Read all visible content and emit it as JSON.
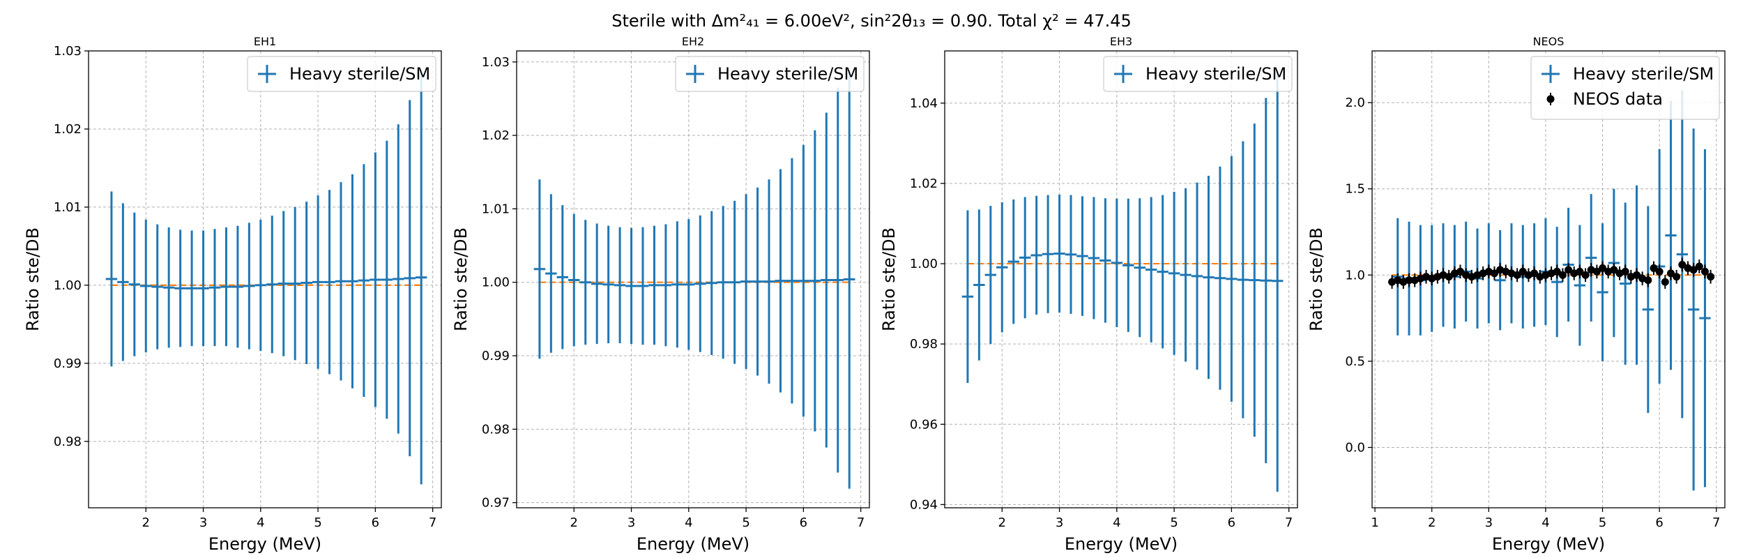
{
  "figure": {
    "suptitle": "Sterile with Δm²₄₁ = 6.00eV², sin²2θ₁₃ = 0.90. Total χ² = 47.45"
  },
  "colors": {
    "model": "#1f77b4",
    "reference": "#ff7f0e",
    "data": "#000000"
  },
  "chart_data": [
    {
      "type": "scatter",
      "title": "EH1",
      "xlabel": "Energy (MeV)",
      "ylabel": "Ratio ste/DB",
      "xlim": [
        1.0,
        7.15
      ],
      "ylim": [
        0.9715,
        1.03
      ],
      "xticks": [
        2,
        3,
        4,
        5,
        6,
        7
      ],
      "yticks": [
        0.98,
        0.99,
        1.0,
        1.01,
        1.02,
        1.03
      ],
      "ytick_labels": [
        "0.98",
        "0.99",
        "1.00",
        "1.01",
        "1.02",
        "1.03"
      ],
      "grid": true,
      "legend_position": "top-right",
      "reference_line": {
        "y": 1.0,
        "x": [
          1.4,
          6.8
        ]
      },
      "series": [
        {
          "name": "Heavy sterile/SM",
          "style": "errorbar",
          "x": [
            1.4,
            1.6,
            1.8,
            2.0,
            2.2,
            2.4,
            2.6,
            2.8,
            3.0,
            3.2,
            3.4,
            3.6,
            3.8,
            4.0,
            4.2,
            4.4,
            4.6,
            4.8,
            5.0,
            5.2,
            5.4,
            5.6,
            5.8,
            6.0,
            6.2,
            6.4,
            6.6,
            6.8
          ],
          "y": [
            1.0008,
            1.0004,
            1.0001,
            0.9999,
            0.9998,
            0.9997,
            0.9996,
            0.9996,
            0.9996,
            0.9997,
            0.9998,
            0.9998,
            0.9999,
            1.0,
            1.0001,
            1.0002,
            1.0002,
            1.0003,
            1.0004,
            1.0004,
            1.0005,
            1.0005,
            1.0006,
            1.0007,
            1.0007,
            1.0008,
            1.0009,
            1.001
          ],
          "xerr": 0.1,
          "yerr": [
            0.0112,
            0.0101,
            0.0092,
            0.0085,
            0.008,
            0.0077,
            0.0075,
            0.0074,
            0.0074,
            0.0075,
            0.0076,
            0.0078,
            0.0081,
            0.0084,
            0.0088,
            0.0093,
            0.0098,
            0.0104,
            0.0111,
            0.0118,
            0.0127,
            0.0137,
            0.0149,
            0.0163,
            0.0178,
            0.0198,
            0.0228,
            0.0265
          ]
        }
      ]
    },
    {
      "type": "scatter",
      "title": "EH2",
      "xlabel": "Energy (MeV)",
      "ylabel": "Ratio ste/DB",
      "xlim": [
        1.0,
        7.15
      ],
      "ylim": [
        0.9693,
        1.0315
      ],
      "xticks": [
        2,
        3,
        4,
        5,
        6,
        7
      ],
      "yticks": [
        0.97,
        0.98,
        0.99,
        1.0,
        1.01,
        1.02,
        1.03
      ],
      "ytick_labels": [
        "0.97",
        "0.98",
        "0.99",
        "1.00",
        "1.01",
        "1.02",
        "1.03"
      ],
      "grid": true,
      "legend_position": "top-right",
      "reference_line": {
        "y": 1.0,
        "x": [
          1.4,
          6.8
        ]
      },
      "series": [
        {
          "name": "Heavy sterile/SM",
          "style": "errorbar",
          "x": [
            1.4,
            1.6,
            1.8,
            2.0,
            2.2,
            2.4,
            2.6,
            2.8,
            3.0,
            3.2,
            3.4,
            3.6,
            3.8,
            4.0,
            4.2,
            4.4,
            4.6,
            4.8,
            5.0,
            5.2,
            5.4,
            5.6,
            5.8,
            6.0,
            6.2,
            6.4,
            6.6,
            6.8
          ],
          "y": [
            1.0018,
            1.0012,
            1.0007,
            1.0003,
            1.0,
            0.9998,
            0.9997,
            0.9996,
            0.9995,
            0.9995,
            0.9996,
            0.9996,
            0.9997,
            0.9997,
            0.9998,
            0.9999,
            1.0,
            1.0,
            1.0001,
            1.0001,
            1.0001,
            1.0002,
            1.0002,
            1.0002,
            1.0002,
            1.0003,
            1.0003,
            1.0004
          ],
          "xerr": 0.1,
          "yerr": [
            0.0122,
            0.0108,
            0.0098,
            0.009,
            0.0085,
            0.0082,
            0.008,
            0.0079,
            0.0079,
            0.008,
            0.0081,
            0.0083,
            0.0086,
            0.0089,
            0.0093,
            0.0098,
            0.0104,
            0.0111,
            0.0119,
            0.0128,
            0.0139,
            0.0152,
            0.0167,
            0.0185,
            0.0205,
            0.0228,
            0.0262,
            0.0285
          ]
        }
      ]
    },
    {
      "type": "scatter",
      "title": "EH3",
      "xlabel": "Energy (MeV)",
      "ylabel": "Ratio ste/DB",
      "xlim": [
        1.0,
        7.15
      ],
      "ylim": [
        0.9392,
        1.053
      ],
      "xticks": [
        2,
        3,
        4,
        5,
        6,
        7
      ],
      "yticks": [
        0.94,
        0.96,
        0.98,
        1.0,
        1.02,
        1.04
      ],
      "ytick_labels": [
        "0.94",
        "0.96",
        "0.98",
        "1.00",
        "1.02",
        "1.04"
      ],
      "grid": true,
      "legend_position": "top-right",
      "reference_line": {
        "y": 1.0,
        "x": [
          1.4,
          6.8
        ]
      },
      "series": [
        {
          "name": "Heavy sterile/SM",
          "style": "errorbar",
          "x": [
            1.4,
            1.6,
            1.8,
            2.0,
            2.2,
            2.4,
            2.6,
            2.8,
            3.0,
            3.2,
            3.4,
            3.6,
            3.8,
            4.0,
            4.2,
            4.4,
            4.6,
            4.8,
            5.0,
            5.2,
            5.4,
            5.6,
            5.8,
            6.0,
            6.2,
            6.4,
            6.6,
            6.8
          ],
          "y": [
            0.9918,
            0.9947,
            0.9972,
            0.9991,
            1.0005,
            1.0015,
            1.0021,
            1.0024,
            1.0025,
            1.0023,
            1.0019,
            1.0014,
            1.0008,
            1.0002,
            0.9996,
            0.999,
            0.9985,
            0.998,
            0.9976,
            0.9972,
            0.9969,
            0.9966,
            0.9964,
            0.9962,
            0.996,
            0.9959,
            0.9958,
            0.9957
          ],
          "xerr": 0.1,
          "yerr": [
            0.0215,
            0.0188,
            0.0172,
            0.0162,
            0.0155,
            0.0151,
            0.0148,
            0.0147,
            0.0147,
            0.0148,
            0.0149,
            0.0152,
            0.0155,
            0.016,
            0.0166,
            0.0173,
            0.0181,
            0.0191,
            0.0203,
            0.0216,
            0.0233,
            0.0253,
            0.0278,
            0.0306,
            0.0345,
            0.039,
            0.0455,
            0.0525
          ]
        }
      ]
    },
    {
      "type": "scatter",
      "title": "NEOS",
      "xlabel": "Energy (MeV)",
      "ylabel": "Ratio ste/DB",
      "xlim": [
        0.95,
        7.15
      ],
      "ylim": [
        -0.35,
        2.3
      ],
      "xticks": [
        1,
        2,
        3,
        4,
        5,
        6,
        7
      ],
      "yticks": [
        0.0,
        0.5,
        1.0,
        1.5,
        2.0
      ],
      "ytick_labels": [
        "0.0",
        "0.5",
        "1.0",
        "1.5",
        "2.0"
      ],
      "grid": true,
      "legend_position": "top-right",
      "reference_line": {
        "y": 1.0,
        "x": [
          1.3,
          6.9
        ]
      },
      "series": [
        {
          "name": "Heavy sterile/SM",
          "style": "errorbar",
          "x": [
            1.4,
            1.6,
            1.8,
            2.0,
            2.2,
            2.4,
            2.6,
            2.8,
            3.0,
            3.2,
            3.4,
            3.6,
            3.8,
            4.0,
            4.2,
            4.4,
            4.6,
            4.8,
            5.0,
            5.2,
            5.4,
            5.6,
            5.8,
            6.0,
            6.2,
            6.4,
            6.6,
            6.8
          ],
          "y": [
            0.99,
            0.98,
            0.97,
            0.98,
            1.0,
            0.99,
            1.02,
            0.98,
            1.01,
            0.97,
            1.01,
            0.99,
            1.0,
            1.02,
            0.96,
            1.06,
            0.94,
            1.1,
            0.9,
            1.07,
            0.95,
            1.0,
            0.8,
            1.05,
            1.23,
            1.12,
            0.8,
            0.75
          ],
          "xerr": 0.1,
          "yerr": [
            0.34,
            0.33,
            0.32,
            0.31,
            0.3,
            0.3,
            0.29,
            0.29,
            0.29,
            0.29,
            0.29,
            0.3,
            0.3,
            0.31,
            0.32,
            0.33,
            0.35,
            0.37,
            0.4,
            0.43,
            0.47,
            0.52,
            0.6,
            0.68,
            0.78,
            0.95,
            1.05,
            0.98
          ]
        },
        {
          "name": "NEOS data",
          "style": "marker",
          "x": [
            1.3,
            1.4,
            1.5,
            1.6,
            1.7,
            1.8,
            1.9,
            2.0,
            2.1,
            2.2,
            2.3,
            2.4,
            2.5,
            2.6,
            2.7,
            2.8,
            2.9,
            3.0,
            3.1,
            3.2,
            3.3,
            3.4,
            3.5,
            3.6,
            3.7,
            3.8,
            3.9,
            4.0,
            4.1,
            4.2,
            4.3,
            4.4,
            4.5,
            4.6,
            4.7,
            4.8,
            4.9,
            5.0,
            5.1,
            5.2,
            5.3,
            5.4,
            5.5,
            5.6,
            5.7,
            5.8,
            5.9,
            6.0,
            6.1,
            6.2,
            6.3,
            6.4,
            6.5,
            6.6,
            6.7,
            6.8,
            6.9
          ],
          "y": [
            0.96,
            0.97,
            0.96,
            0.97,
            0.97,
            0.98,
            0.99,
            0.98,
            0.99,
            1.0,
            0.99,
            1.01,
            1.02,
            1.0,
            0.99,
            1.0,
            1.01,
            1.02,
            1.01,
            1.03,
            1.02,
            1.01,
            1.0,
            1.02,
            1.0,
            1.01,
            0.99,
            1.0,
            1.01,
            1.02,
            1.0,
            1.03,
            1.01,
            1.02,
            1.0,
            1.03,
            1.02,
            1.04,
            1.02,
            1.03,
            1.01,
            1.02,
            0.99,
            1.0,
            0.98,
            0.97,
            1.04,
            1.02,
            0.96,
            1.01,
            0.99,
            1.06,
            1.04,
            1.03,
            1.05,
            1.02,
            0.99
          ],
          "yerr": 0.04
        }
      ]
    }
  ]
}
